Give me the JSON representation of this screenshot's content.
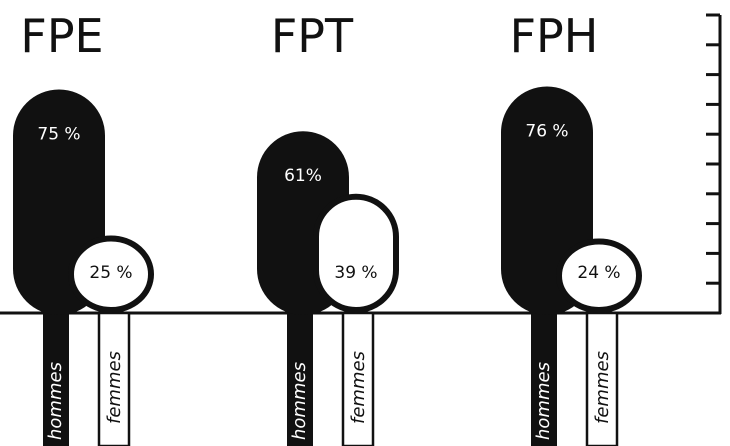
{
  "chart_data": {
    "type": "bar",
    "categories": [
      "FPE",
      "FPT",
      "FPH"
    ],
    "series": [
      {
        "name": "hommes",
        "values": [
          75,
          61,
          76
        ]
      },
      {
        "name": "femmes",
        "values": [
          25,
          39,
          24
        ]
      }
    ],
    "value_labels": {
      "hommes": [
        "75 %",
        "61%",
        "76 %"
      ],
      "femmes": [
        "25 %",
        "39 %",
        "24 %"
      ]
    },
    "ylim": [
      0,
      100
    ],
    "y_ticks": 10,
    "grid": false
  },
  "colors": {
    "hommes": "#111111",
    "femmes": "#ffffff",
    "outline": "#111111",
    "background": "#ffffff"
  }
}
